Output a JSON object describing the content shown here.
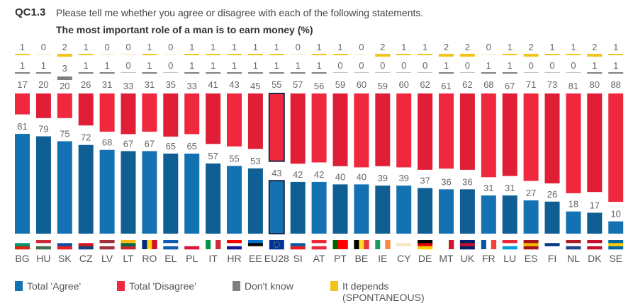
{
  "header": {
    "code": "QC1.3",
    "question": "Please tell me whether you agree or disagree with each of the following statements.",
    "title": "The most important role of a man is to earn money  (%)"
  },
  "colors": {
    "agree": "#1472b2",
    "agree_alt": "#0f5f94",
    "disagree": "#f0283e",
    "disagree_alt": "#e01e36",
    "dont_know": "#7f7f7f",
    "it_depends": "#f2c318",
    "highlight_outline": "#1c2a4f"
  },
  "legend": [
    {
      "key": "agree",
      "label": "Total 'Agree'"
    },
    {
      "key": "disagree",
      "label": "Total 'Disagree'"
    },
    {
      "key": "dont_know",
      "label": "Don't know"
    },
    {
      "key": "it_depends",
      "label": "It depends",
      "label2": "(SPONTANEOUS)"
    }
  ],
  "chart_data": {
    "type": "bar",
    "title": "The most important role of a man is to earn money (%)",
    "xlabel": "",
    "ylabel": "%",
    "ylim": [
      0,
      100
    ],
    "highlight": "EU28",
    "categories": [
      "BG",
      "HU",
      "SK",
      "CZ",
      "LV",
      "LT",
      "RO",
      "EL",
      "PL",
      "IT",
      "HR",
      "EE",
      "EU28",
      "SI",
      "AT",
      "PT",
      "BE",
      "IE",
      "CY",
      "DE",
      "MT",
      "UK",
      "FR",
      "LU",
      "ES",
      "FI",
      "NL",
      "DK",
      "SE"
    ],
    "series": [
      {
        "name": "Total 'Agree'",
        "key": "agree",
        "values": [
          81,
          79,
          75,
          72,
          68,
          67,
          67,
          65,
          65,
          57,
          55,
          53,
          43,
          42,
          42,
          40,
          40,
          39,
          39,
          37,
          36,
          36,
          31,
          31,
          27,
          26,
          18,
          17,
          10
        ]
      },
      {
        "name": "Total 'Disagree'",
        "key": "disagree",
        "values": [
          17,
          20,
          20,
          26,
          31,
          33,
          31,
          35,
          33,
          41,
          43,
          45,
          55,
          57,
          56,
          59,
          60,
          59,
          60,
          62,
          61,
          62,
          68,
          67,
          71,
          73,
          81,
          80,
          88
        ]
      },
      {
        "name": "Don't know",
        "key": "dont_know",
        "values": [
          1,
          1,
          3,
          1,
          1,
          0,
          1,
          0,
          1,
          1,
          1,
          1,
          1,
          1,
          1,
          0,
          0,
          0,
          0,
          0,
          1,
          0,
          1,
          1,
          0,
          0,
          0,
          1,
          1
        ]
      },
      {
        "name": "It depends (SPONTANEOUS)",
        "key": "it_depends",
        "values": [
          1,
          0,
          2,
          1,
          0,
          0,
          1,
          0,
          1,
          1,
          1,
          1,
          1,
          0,
          1,
          1,
          0,
          2,
          1,
          1,
          2,
          2,
          0,
          1,
          2,
          1,
          1,
          2,
          1
        ]
      }
    ],
    "legend_position": "bottom"
  }
}
